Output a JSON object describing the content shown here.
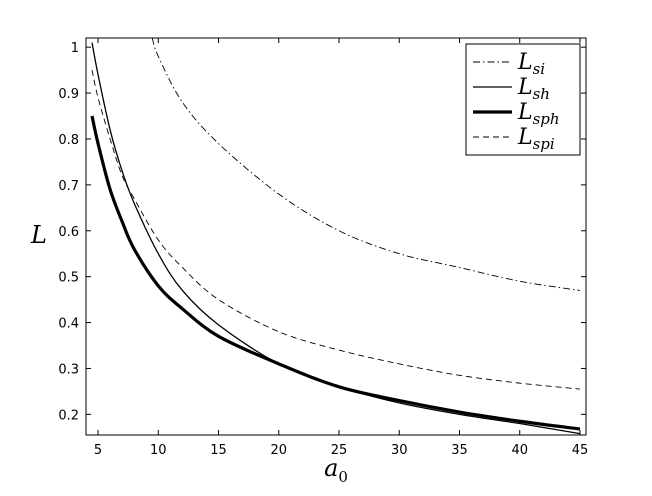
{
  "chart_data": {
    "type": "line",
    "title": "",
    "xlabel": {
      "base": "a",
      "sub": "0"
    },
    "ylabel": "L",
    "xlim": [
      4,
      45.5
    ],
    "ylim": [
      0.155,
      1.02
    ],
    "xticks": [
      5,
      10,
      15,
      20,
      25,
      30,
      35,
      40,
      45
    ],
    "yticks": [
      0.2,
      0.3,
      0.4,
      0.5,
      0.6,
      0.7,
      0.8,
      0.9,
      1
    ],
    "grid": false,
    "legend_position": "top-right",
    "series": [
      {
        "name": "L_si",
        "legend": {
          "base": "L",
          "sub": "si"
        },
        "style": "dash-dot",
        "color": "#000000",
        "x": [
          9.5,
          10,
          12,
          15,
          20,
          25,
          30,
          35,
          40,
          45
        ],
        "y": [
          1.02,
          0.98,
          0.88,
          0.79,
          0.68,
          0.6,
          0.55,
          0.52,
          0.49,
          0.47
        ]
      },
      {
        "name": "L_sh",
        "legend": {
          "base": "L",
          "sub": "sh"
        },
        "style": "solid",
        "color": "#000000",
        "x": [
          4.5,
          5,
          6,
          7,
          8,
          10,
          12,
          15,
          20,
          25,
          30,
          35,
          40,
          45
        ],
        "y": [
          1.01,
          0.94,
          0.82,
          0.73,
          0.66,
          0.55,
          0.47,
          0.395,
          0.31,
          0.26,
          0.225,
          0.2,
          0.18,
          0.158
        ]
      },
      {
        "name": "L_sph",
        "legend": {
          "base": "L",
          "sub": "sph"
        },
        "style": "thick-solid",
        "color": "#000000",
        "x": [
          4.5,
          5,
          6,
          7,
          8,
          10,
          12,
          15,
          20,
          25,
          30,
          35,
          40,
          45
        ],
        "y": [
          0.85,
          0.79,
          0.69,
          0.62,
          0.56,
          0.48,
          0.43,
          0.37,
          0.31,
          0.26,
          0.23,
          0.205,
          0.185,
          0.168
        ]
      },
      {
        "name": "L_spi",
        "legend": {
          "base": "L",
          "sub": "spi"
        },
        "style": "dashed",
        "color": "#000000",
        "x": [
          4.5,
          5,
          6,
          7,
          8,
          10,
          12,
          15,
          20,
          25,
          30,
          35,
          40,
          45
        ],
        "y": [
          0.95,
          0.89,
          0.8,
          0.72,
          0.67,
          0.58,
          0.52,
          0.45,
          0.38,
          0.34,
          0.31,
          0.285,
          0.268,
          0.255
        ]
      }
    ]
  }
}
